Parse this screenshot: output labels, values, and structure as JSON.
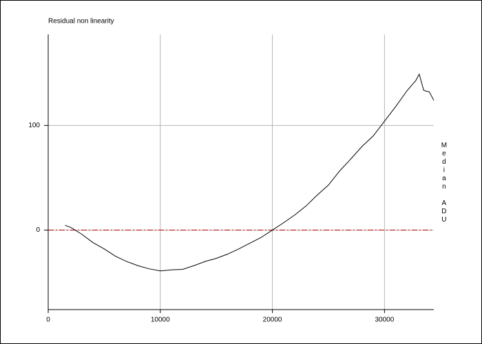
{
  "chart_data": {
    "type": "line",
    "title": "Residual non linearity",
    "y_label": "Median ADU",
    "xlim": [
      0,
      34400
    ],
    "ylim": [
      -76,
      187
    ],
    "xticks": [
      0,
      10000,
      20000,
      30000
    ],
    "yticks": [
      0,
      100
    ],
    "grid": true,
    "reference_line": {
      "value": 0,
      "color": "#c00000"
    },
    "x": [
      1500,
      2000,
      3000,
      4000,
      5000,
      6000,
      7000,
      8000,
      9000,
      10000,
      11000,
      12000,
      13000,
      14000,
      15000,
      16000,
      17000,
      18000,
      19000,
      20000,
      21000,
      22000,
      23000,
      24000,
      25000,
      26000,
      27000,
      28000,
      29000,
      30000,
      31000,
      32000,
      32800,
      33100,
      33500,
      34000,
      34400
    ],
    "series": [
      {
        "color": "#000000",
        "values": [
          4.6,
          2.6,
          -4,
          -12,
          -18,
          -25,
          -30,
          -34,
          -37,
          -39,
          -38,
          -37.5,
          -34,
          -30,
          -27,
          -23,
          -18,
          -12.5,
          -7,
          0,
          7,
          14.5,
          23,
          33.5,
          43,
          56.5,
          68,
          80,
          90,
          104,
          118,
          133,
          143,
          149,
          133.5,
          132,
          124
        ]
      }
    ]
  }
}
